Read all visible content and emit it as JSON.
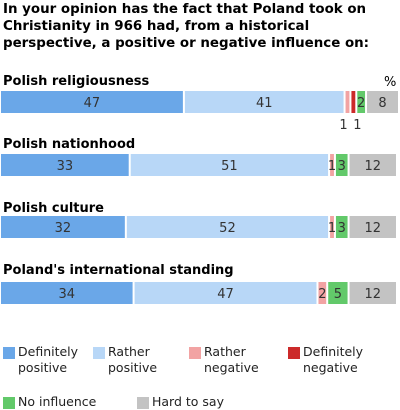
{
  "title": "In your opinion has the fact that Poland took on Christianity in 966 had, from a historical perspective, a positive or negative influence on:",
  "unit_label": "%",
  "colors": {
    "definitely_positive": "#6aa7e8",
    "rather_positive": "#b8d7f7",
    "rather_negative": "#f2a3a3",
    "definitely_negative": "#cc2a2a",
    "no_influence": "#62c96a",
    "hard_to_say": "#c3c3c3"
  },
  "chart_data": {
    "type": "bar",
    "orientation": "horizontal",
    "stacked": true,
    "title": "In your opinion has the fact that Poland took on Christianity in 966 had, from a historical perspective, a positive or negative influence on:",
    "categories": [
      "Polish religiousness",
      "Polish nationhood",
      "Polish culture",
      "Poland's international standing"
    ],
    "series": [
      {
        "name": "Definitely positive",
        "values": [
          47,
          33,
          32,
          34
        ]
      },
      {
        "name": "Rather positive",
        "values": [
          41,
          51,
          52,
          47
        ]
      },
      {
        "name": "Rather negative",
        "values": [
          1,
          1,
          1,
          2
        ]
      },
      {
        "name": "Definitely negative",
        "values": [
          1,
          0,
          0,
          0
        ]
      },
      {
        "name": "No influence",
        "values": [
          2,
          3,
          3,
          5
        ]
      },
      {
        "name": "Hard to say",
        "values": [
          8,
          12,
          12,
          12
        ]
      }
    ],
    "grid": false,
    "legend_position": "bottom"
  },
  "legend": [
    {
      "label": "Definitely positive",
      "key": "definitely_positive"
    },
    {
      "label": "Rather positive",
      "key": "rather_positive"
    },
    {
      "label": "Rather negative",
      "key": "rather_negative"
    },
    {
      "label": "Definitely negative",
      "key": "definitely_negative"
    },
    {
      "label": "No influence",
      "key": "no_influence"
    },
    {
      "label": "Hard to say",
      "key": "hard_to_say"
    }
  ]
}
